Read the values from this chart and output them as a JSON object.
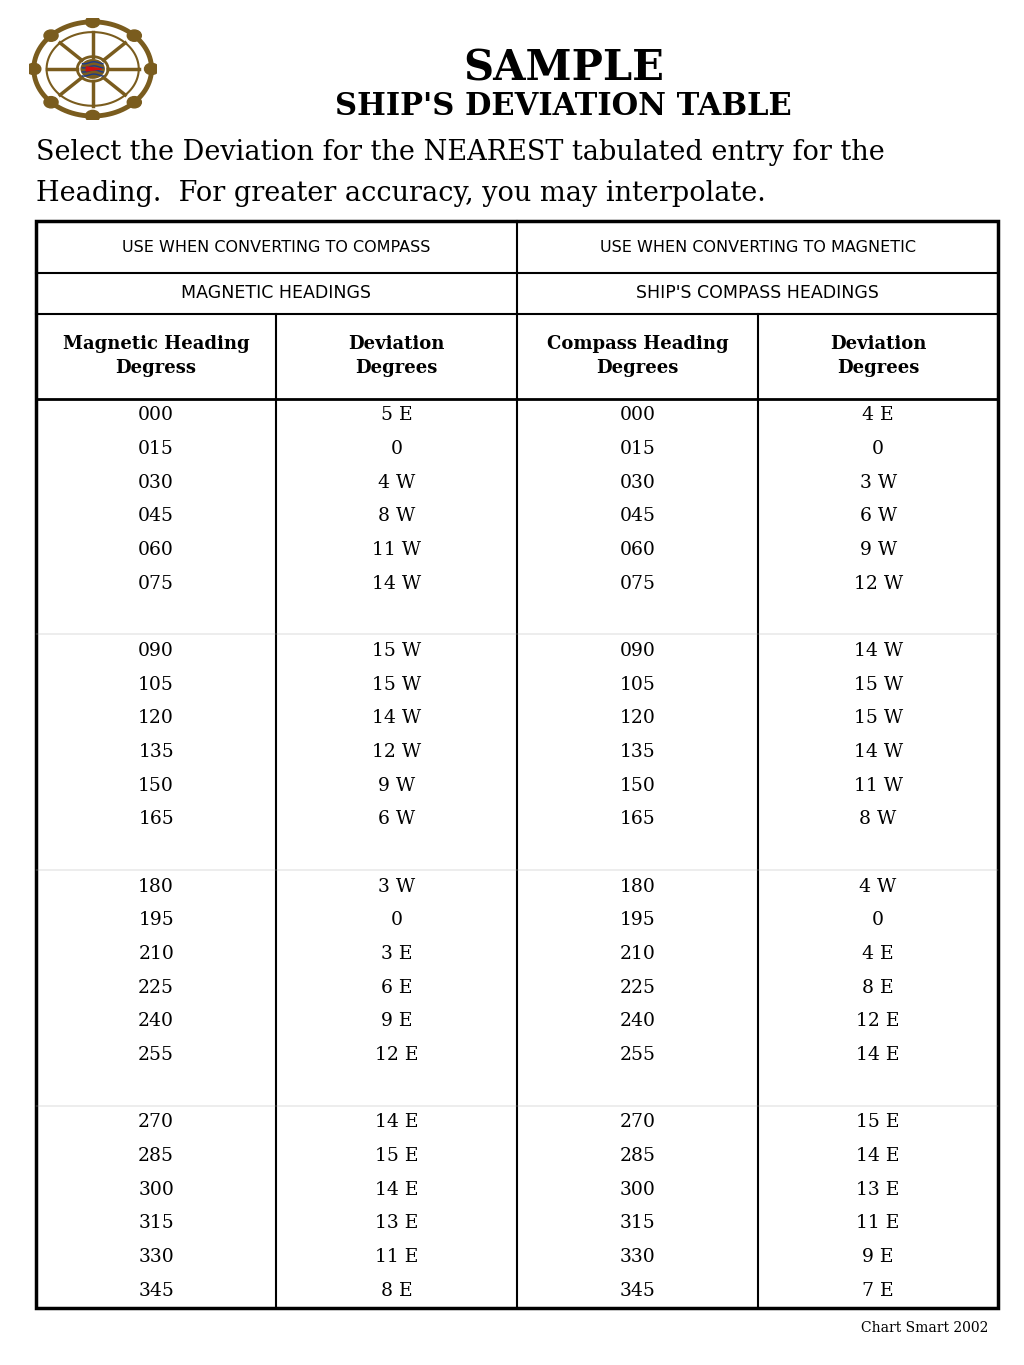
{
  "title1": "SAMPLE",
  "title2": "SHIP'S DEVIATION TABLE",
  "subtitle_line1": "Select the Deviation for the NEAREST tabulated entry for the",
  "subtitle_line2": "Heading.  For greater accuracy, you may interpolate.",
  "header_row1_left": "USE WHEN CONVERTING TO COMPASS",
  "header_row1_right": "USE WHEN CONVERTING TO MAGNETIC",
  "header_row2_left": "MAGNETIC HEADINGS",
  "header_row2_right": "SHIP'S COMPASS HEADINGS",
  "col_headers": [
    "Magnetic Heading\nDegress",
    "Deviation\nDegrees",
    "Compass Heading\nDegrees",
    "Deviation\nDegrees"
  ],
  "magnetic_headings": [
    "000",
    "015",
    "030",
    "045",
    "060",
    "075",
    "",
    "090",
    "105",
    "120",
    "135",
    "150",
    "165",
    "",
    "180",
    "195",
    "210",
    "225",
    "240",
    "255",
    "",
    "270",
    "285",
    "300",
    "315",
    "330",
    "345"
  ],
  "magnetic_deviations": [
    "5 E",
    "0",
    "4 W",
    "8 W",
    "11 W",
    "14 W",
    "",
    "15 W",
    "15 W",
    "14 W",
    "12 W",
    "9 W",
    "6 W",
    "",
    "3 W",
    "0",
    "3 E",
    "6 E",
    "9 E",
    "12 E",
    "",
    "14 E",
    "15 E",
    "14 E",
    "13 E",
    "11 E",
    "8 E"
  ],
  "compass_headings": [
    "000",
    "015",
    "030",
    "045",
    "060",
    "075",
    "",
    "090",
    "105",
    "120",
    "135",
    "150",
    "165",
    "",
    "180",
    "195",
    "210",
    "225",
    "240",
    "255",
    "",
    "270",
    "285",
    "300",
    "315",
    "330",
    "345"
  ],
  "compass_deviations": [
    "4 E",
    "0",
    "3 W",
    "6 W",
    "9 W",
    "12 W",
    "",
    "14 W",
    "15 W",
    "15 W",
    "14 W",
    "11 W",
    "8 W",
    "",
    "4 W",
    "0",
    "4 E",
    "8 E",
    "12 E",
    "14 E",
    "",
    "15 E",
    "14 E",
    "13 E",
    "11 E",
    "9 E",
    "7 E"
  ],
  "footer": "Chart Smart 2002",
  "bg_color": "#ffffff",
  "text_color": "#000000"
}
